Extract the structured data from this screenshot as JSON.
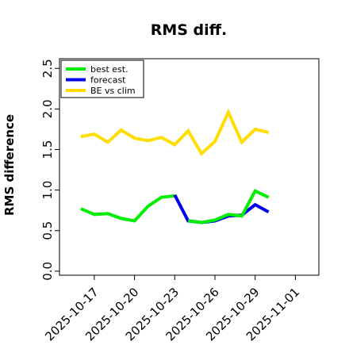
{
  "chart_data": {
    "type": "line",
    "title": "RMS diff.",
    "xlabel": "",
    "ylabel": "RMS difference",
    "ylim": [
      -0.05,
      2.62
    ],
    "yticks": [
      "0.0",
      "0.5",
      "1.0",
      "1.5",
      "2.0",
      "2.5"
    ],
    "xticks": [
      {
        "label": "2025-10-17",
        "color": "#000000"
      },
      {
        "label": "2025-10-20",
        "color": "#000000"
      },
      {
        "label": "2025-10-23",
        "color": "#228B22"
      },
      {
        "label": "2025-10-26",
        "color": "#000000"
      },
      {
        "label": "2025-10-29",
        "color": "#000000"
      },
      {
        "label": "2025-11-01",
        "color": "#000000"
      }
    ],
    "x": [
      "2025-10-16",
      "2025-10-17",
      "2025-10-18",
      "2025-10-19",
      "2025-10-20",
      "2025-10-21",
      "2025-10-22",
      "2025-10-23",
      "2025-10-24",
      "2025-10-25",
      "2025-10-26",
      "2025-10-27",
      "2025-10-28",
      "2025-10-29",
      "2025-10-30"
    ],
    "series": [
      {
        "name": "best est.",
        "color": "#00ee00",
        "values": [
          0.77,
          0.7,
          0.71,
          0.65,
          0.62,
          0.8,
          0.91,
          0.93,
          null,
          null,
          null,
          null,
          null,
          null,
          null
        ]
      },
      {
        "name": "forecast",
        "color": "#0000ee",
        "values": [
          null,
          null,
          null,
          null,
          null,
          null,
          null,
          0.94,
          0.62,
          0.6,
          0.62,
          0.68,
          0.69,
          0.82,
          0.73
        ]
      },
      {
        "name": "best est.",
        "color": "#00ee00",
        "legend": false,
        "values": [
          null,
          null,
          null,
          null,
          null,
          null,
          null,
          null,
          0.62,
          0.6,
          0.63,
          0.7,
          0.68,
          0.99,
          0.91
        ]
      },
      {
        "name": "BE vs clim",
        "color": "#ffdd00",
        "values": [
          1.66,
          1.69,
          1.59,
          1.74,
          1.64,
          1.61,
          1.65,
          1.56,
          1.73,
          1.45,
          1.6,
          1.96,
          1.59,
          1.75,
          1.71
        ]
      }
    ],
    "grid": false,
    "legend_position": "top-left"
  }
}
